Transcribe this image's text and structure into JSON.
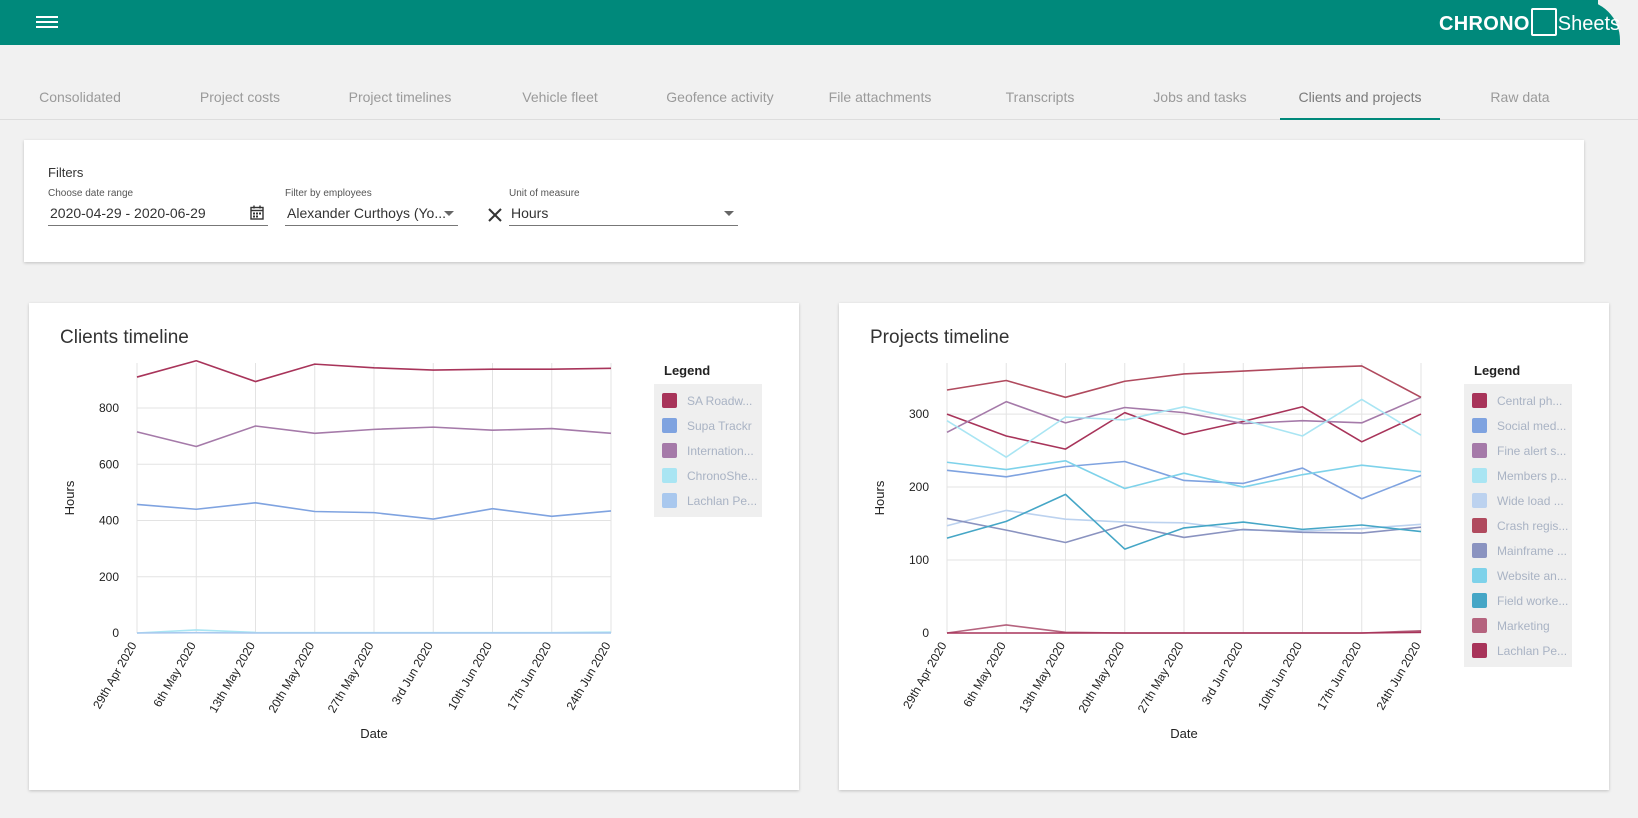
{
  "app": {
    "logo_left": "CHRONO",
    "logo_right": "Sheets"
  },
  "tabs": [
    {
      "label": "Consolidated"
    },
    {
      "label": "Project costs"
    },
    {
      "label": "Project timelines"
    },
    {
      "label": "Vehicle fleet"
    },
    {
      "label": "Geofence activity"
    },
    {
      "label": "File attachments"
    },
    {
      "label": "Transcripts"
    },
    {
      "label": "Jobs and tasks"
    },
    {
      "label": "Clients and projects",
      "active": true
    },
    {
      "label": "Raw data"
    }
  ],
  "filters": {
    "title": "Filters",
    "date_range": {
      "label": "Choose date range",
      "value": "2020-04-29 - 2020-06-29"
    },
    "employees": {
      "label": "Filter by employees",
      "value": "Alexander Curthoys (Yo..."
    },
    "unit": {
      "label": "Unit of measure",
      "value": "Hours"
    }
  },
  "colors": {
    "brand": "#00897b"
  },
  "charts": [
    {
      "key": "clients",
      "title": "Clients timeline",
      "legend_title": "Legend",
      "chart_data": {
        "type": "line",
        "x": [
          "29th Apr 2020",
          "6th May 2020",
          "13th May 2020",
          "20th May 2020",
          "27th May 2020",
          "3rd Jun 2020",
          "10th Jun 2020",
          "17th Jun 2020",
          "24th Jun 2020"
        ],
        "xlabel": "Date",
        "ylabel": "Hours",
        "ylim": [
          0,
          960
        ],
        "yticks": [
          0,
          200,
          400,
          600,
          800
        ],
        "grid": true,
        "legend_position": "right",
        "series": [
          {
            "name": "SA Roadw...",
            "color": "#a8345a",
            "values": [
              910,
              968,
              894,
              956,
              943,
              935,
              938,
              938,
              941
            ]
          },
          {
            "name": "Supa Trackr",
            "color": "#7fa3e0",
            "values": [
              457,
              440,
              463,
              432,
              428,
              405,
              442,
              415,
              434
            ]
          },
          {
            "name": "Internation...",
            "color": "#a57aa9",
            "values": [
              715,
              663,
              736,
              710,
              724,
              732,
              721,
              727,
              710
            ]
          },
          {
            "name": "ChronoShe...",
            "color": "#a9e5f3",
            "values": [
              0,
              11,
              2,
              1,
              1,
              1,
              1,
              1,
              3
            ]
          },
          {
            "name": "Lachlan Pe...",
            "color": "#a9c8ee",
            "values": [
              0,
              1,
              0,
              0,
              0,
              0,
              0,
              0,
              0
            ]
          }
        ]
      }
    },
    {
      "key": "projects",
      "title": "Projects timeline",
      "legend_title": "Legend",
      "chart_data": {
        "type": "line",
        "x": [
          "29th Apr 2020",
          "6th May 2020",
          "13th May 2020",
          "20th May 2020",
          "27th May 2020",
          "3rd Jun 2020",
          "10th Jun 2020",
          "17th Jun 2020",
          "24th Jun 2020"
        ],
        "xlabel": "Date",
        "ylabel": "Hours",
        "ylim": [
          0,
          370
        ],
        "yticks": [
          0,
          100,
          200,
          300
        ],
        "grid": true,
        "legend_position": "right",
        "series": [
          {
            "name": "Central ph...",
            "color": "#a8345a",
            "values": [
              300,
              270,
              252,
              302,
              272,
              290,
              310,
              262,
              300
            ]
          },
          {
            "name": "Social med...",
            "color": "#7fa3e0",
            "values": [
              223,
              214,
              228,
              235,
              209,
              205,
              226,
              184,
              216
            ]
          },
          {
            "name": "Fine alert s...",
            "color": "#a57aa9",
            "values": [
              275,
              317,
              288,
              309,
              302,
              287,
              291,
              288,
              323
            ]
          },
          {
            "name": "Members p...",
            "color": "#a9e5f3",
            "values": [
              291,
              241,
              296,
              292,
              310,
              292,
              270,
              320,
              271
            ]
          },
          {
            "name": "Wide load ...",
            "color": "#bcd2ef",
            "values": [
              147,
              168,
              156,
              152,
              151,
              141,
              140,
              143,
              149
            ]
          },
          {
            "name": "Crash regis...",
            "color": "#b04a5e",
            "values": [
              333,
              346,
              323,
              345,
              355,
              359,
              363,
              366,
              323
            ]
          },
          {
            "name": "Mainframe ...",
            "color": "#8a93c0",
            "values": [
              157,
              141,
              124,
              148,
              131,
              142,
              138,
              137,
              145
            ]
          },
          {
            "name": "Website an...",
            "color": "#7ed2ea",
            "values": [
              234,
              224,
              236,
              198,
              219,
              200,
              217,
              230,
              221
            ]
          },
          {
            "name": "Field worke...",
            "color": "#45a6c6",
            "values": [
              130,
              153,
              190,
              115,
              144,
              152,
              142,
              148,
              139
            ]
          },
          {
            "name": "Marketing",
            "color": "#b5637e",
            "values": [
              0,
              11,
              1,
              0,
              0,
              0,
              0,
              0,
              3
            ]
          },
          {
            "name": "Lachlan Pe...",
            "color": "#a8345a",
            "values": [
              0,
              0,
              0,
              0,
              0,
              0,
              0,
              0,
              1
            ]
          }
        ]
      }
    }
  ]
}
